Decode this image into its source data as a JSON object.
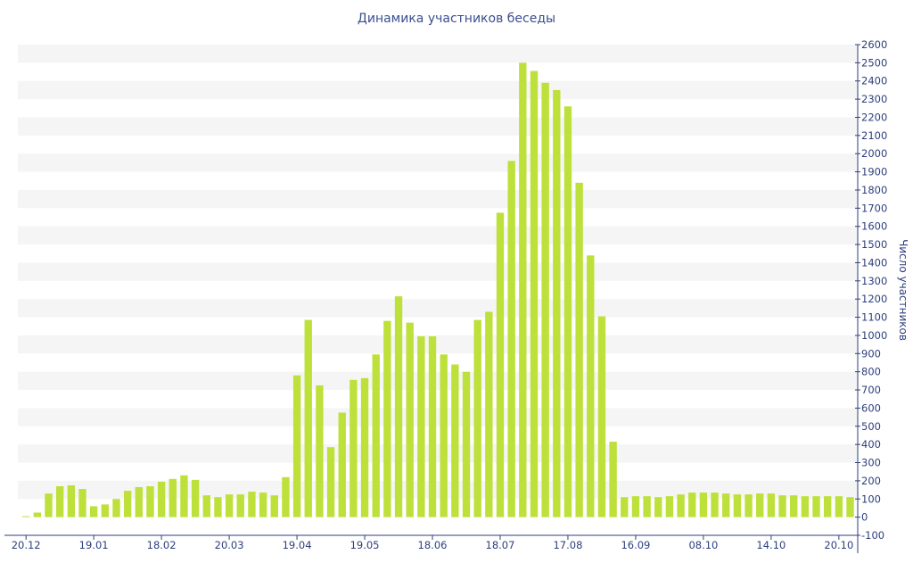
{
  "chart_data": {
    "type": "bar",
    "title": "Динамика участников беседы",
    "ylabel": "Число участников",
    "xlabel": "",
    "ylim": [
      -100,
      2600
    ],
    "y_tick_step": 100,
    "grid": "horizontal alternating bands",
    "bar_color": "#bde03a",
    "band_color": "#f5f5f5",
    "text_color": "#2d3f7c",
    "x_tick_labels": [
      {
        "label": "20.12",
        "index": 0
      },
      {
        "label": "19.01",
        "index": 6
      },
      {
        "label": "18.02",
        "index": 12
      },
      {
        "label": "20.03",
        "index": 18
      },
      {
        "label": "19.04",
        "index": 24
      },
      {
        "label": "19.05",
        "index": 30
      },
      {
        "label": "18.06",
        "index": 36
      },
      {
        "label": "18.07",
        "index": 42
      },
      {
        "label": "17.08",
        "index": 48
      },
      {
        "label": "16.09",
        "index": 54
      },
      {
        "label": "08.10",
        "index": 60
      },
      {
        "label": "14.10",
        "index": 66
      },
      {
        "label": "20.10",
        "index": 72
      }
    ],
    "values": [
      5,
      25,
      130,
      170,
      175,
      155,
      60,
      70,
      100,
      145,
      165,
      170,
      195,
      210,
      230,
      205,
      120,
      110,
      125,
      125,
      140,
      135,
      120,
      220,
      780,
      1085,
      725,
      385,
      575,
      755,
      765,
      895,
      1080,
      1215,
      1070,
      995,
      995,
      895,
      840,
      800,
      1085,
      1130,
      1675,
      1960,
      2500,
      2455,
      2390,
      2350,
      2260,
      1840,
      1440,
      1105,
      415,
      110,
      115,
      115,
      110,
      115,
      125,
      135,
      135,
      135,
      130,
      125,
      125,
      130,
      130,
      120,
      120,
      115,
      115,
      115,
      115,
      110
    ]
  }
}
